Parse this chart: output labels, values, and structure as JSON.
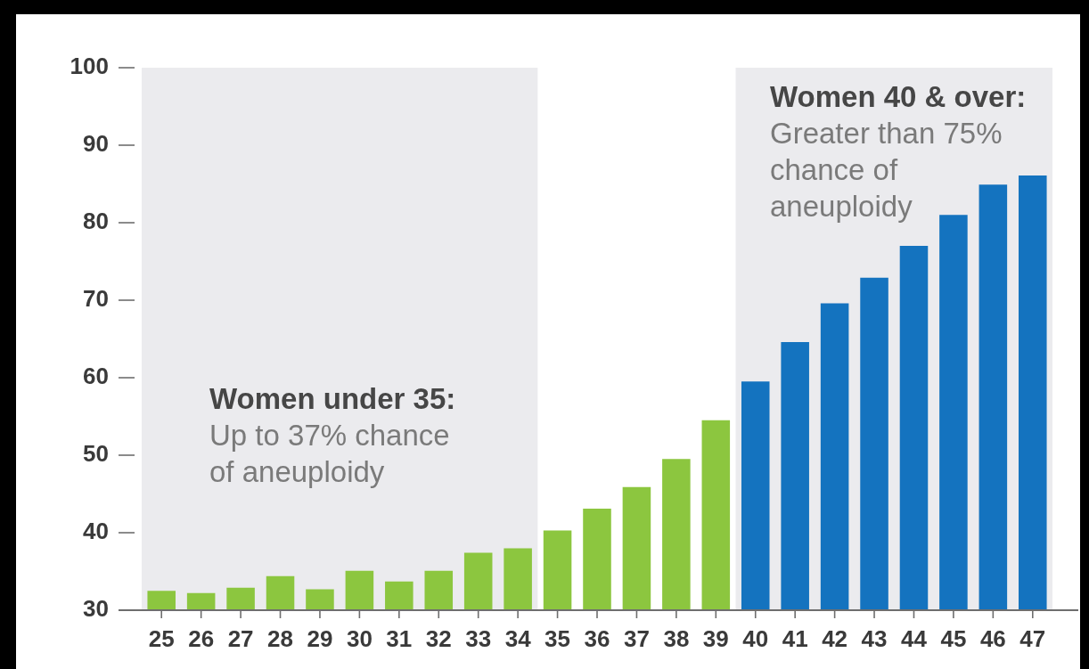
{
  "chart_data": {
    "type": "bar",
    "categories": [
      "25",
      "26",
      "27",
      "28",
      "29",
      "30",
      "31",
      "32",
      "33",
      "34",
      "35",
      "36",
      "37",
      "38",
      "39",
      "40",
      "41",
      "42",
      "43",
      "44",
      "45",
      "46",
      "47"
    ],
    "values": [
      32.5,
      32.2,
      32.9,
      34.4,
      32.7,
      35.1,
      33.7,
      35.1,
      37.4,
      38.0,
      40.3,
      43.1,
      45.9,
      49.5,
      54.5,
      59.5,
      64.6,
      69.6,
      72.9,
      77.0,
      81.0,
      84.9,
      86.1
    ],
    "colors": [
      "#8cc63f",
      "#8cc63f",
      "#8cc63f",
      "#8cc63f",
      "#8cc63f",
      "#8cc63f",
      "#8cc63f",
      "#8cc63f",
      "#8cc63f",
      "#8cc63f",
      "#8cc63f",
      "#8cc63f",
      "#8cc63f",
      "#8cc63f",
      "#8cc63f",
      "#1473bf",
      "#1473bf",
      "#1473bf",
      "#1473bf",
      "#1473bf",
      "#1473bf",
      "#1473bf",
      "#1473bf"
    ],
    "ylim": [
      30,
      100
    ],
    "yticks": [
      30,
      40,
      50,
      60,
      70,
      80,
      90,
      100
    ],
    "bands": [
      {
        "axis": "x",
        "from": "25",
        "to": "34",
        "color": "#ebebee"
      },
      {
        "axis": "x",
        "from": "40",
        "to": "47",
        "color": "#ebebee"
      }
    ],
    "annotations": [
      "Women under 35: Up to 37% chance of aneuploidy",
      "Women 40 & over: Greater than 75% chance of aneuploidy"
    ]
  }
}
